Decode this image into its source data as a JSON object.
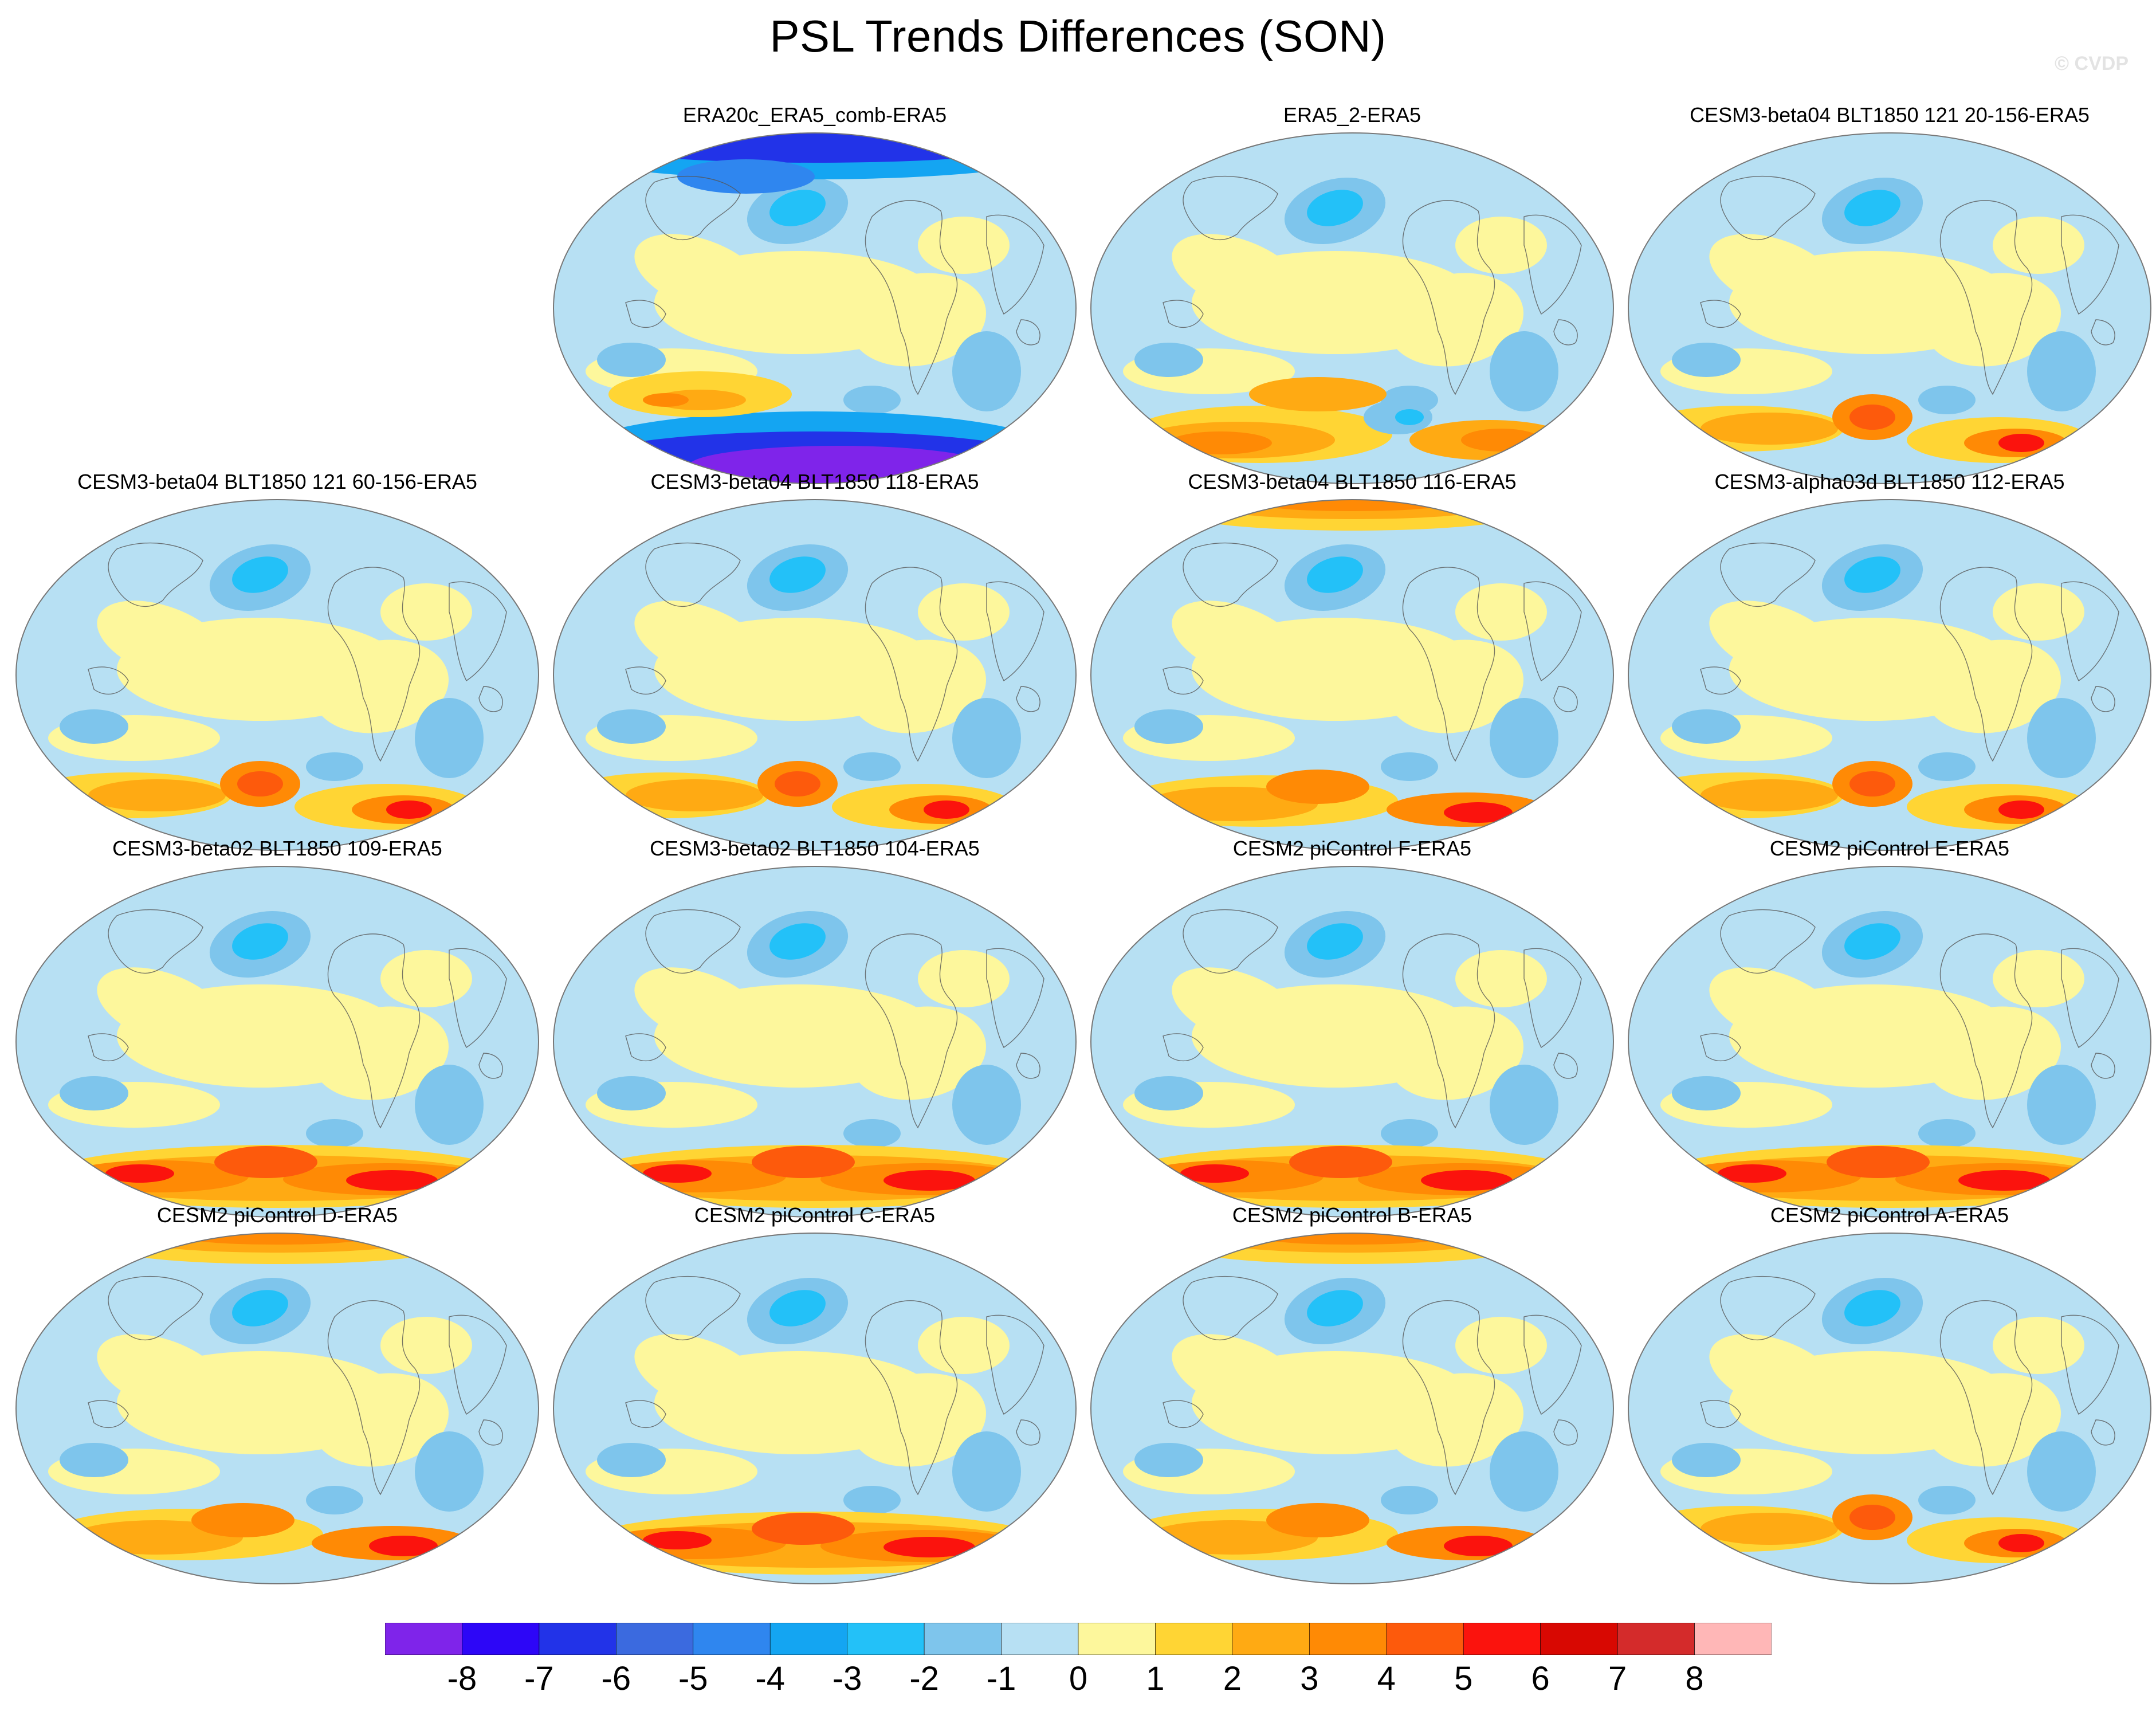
{
  "title": "PSL Trends Differences (SON)",
  "credit": "© CVDP",
  "colorbar": {
    "colors": [
      "#7f24ea",
      "#2d06f7",
      "#2233e8",
      "#3b6adf",
      "#2f86ef",
      "#14a5f2",
      "#23c1f8",
      "#7ec5ec",
      "#b7e0f3",
      "#fdf79c",
      "#ffd534",
      "#ffaa13",
      "#ff8a05",
      "#fd5a0c",
      "#fb130d",
      "#d80802",
      "#d42b2b",
      "#ffb7b7"
    ],
    "labels": [
      "-8",
      "-7",
      "-6",
      "-5",
      "-4",
      "-3",
      "-2",
      "-1",
      "0",
      "1",
      "2",
      "3",
      "4",
      "5",
      "6",
      "7",
      "8"
    ]
  },
  "panels": [
    {
      "title": "ERA20c_ERA5_comb-ERA5",
      "style": "era20c"
    },
    {
      "title": "ERA5_2-ERA5",
      "style": "era5"
    },
    {
      "title": "CESM3-beta04 BLT1850 121 20-156-ERA5",
      "style": "std"
    },
    {
      "title": "CESM3-beta04 BLT1850 121 60-156-ERA5",
      "style": "std"
    },
    {
      "title": "CESM3-beta04 BLT1850 118-ERA5",
      "style": "std"
    },
    {
      "title": "CESM3-beta04 BLT1850 116-ERA5",
      "style": "arcticwarm"
    },
    {
      "title": "CESM3-alpha03d BLT1850 112-ERA5",
      "style": "std"
    },
    {
      "title": "CESM3-beta02 BLT1850 109-ERA5",
      "style": "strong"
    },
    {
      "title": "CESM3-beta02 BLT1850 104-ERA5",
      "style": "strong"
    },
    {
      "title": "CESM2 piControl F-ERA5",
      "style": "strong"
    },
    {
      "title": "CESM2 piControl E-ERA5",
      "style": "strong"
    },
    {
      "title": "CESM2 piControl D-ERA5",
      "style": "arcticwarm"
    },
    {
      "title": "CESM2 piControl C-ERA5",
      "style": "strong"
    },
    {
      "title": "CESM2 piControl B-ERA5",
      "style": "arcticwarm"
    },
    {
      "title": "CESM2 piControl A-ERA5",
      "style": "std"
    }
  ]
}
